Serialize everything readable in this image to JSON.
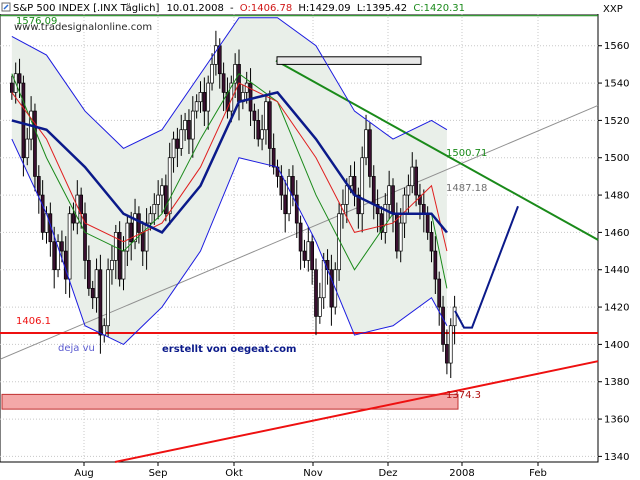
{
  "header": {
    "instrument": "S&P 500 INDEX [.INX  Täglich]",
    "date": "10.01.2008",
    "open": "O:1406.78",
    "high": "H:1429.09",
    "low": "L:1395.42",
    "close": "C:1420.31",
    "symbol": "XXP",
    "watermark": "www.tradesignalonline.com"
  },
  "colors": {
    "background": "#ffffff",
    "band_fill": "#e9efe9",
    "grid": "#c8c8c8",
    "candle_up": "#ffffff",
    "candle_down": "#3a1030",
    "bollinger": "#1c1ce0",
    "sma_fast": "#1a8a1a",
    "sma_mid": "#e02020",
    "sma_slow": "#0b1a8a",
    "trend_green": "#1a8a1a",
    "support_red": "#ee1010",
    "grey_line": "#909090",
    "arrow": "#0b1a8a"
  },
  "chart_data": {
    "type": "candlestick",
    "title": "S&P 500 INDEX [.INX  Täglich]",
    "x_tick_labels": [
      "Aug",
      "Sep",
      "Okt",
      "Nov",
      "Dez",
      "2008",
      "Feb"
    ],
    "y_ticks": [
      1340,
      1360,
      1380,
      1400,
      1420,
      1440,
      1460,
      1480,
      1500,
      1520,
      1540,
      1560
    ],
    "ylim": [
      1337,
      1577
    ],
    "grid": true,
    "annotations": [
      {
        "text": "1576.09",
        "color": "#1a8a1a"
      },
      {
        "text": "1500.71",
        "color": "#1a8a1a"
      },
      {
        "text": "1487.18",
        "color": "#707070"
      },
      {
        "text": "1406.1",
        "color": "#ee1010"
      },
      {
        "text": "1374.3",
        "color": "#b01010"
      },
      {
        "text": "deja vu",
        "color": "#5a5ad0"
      },
      {
        "text": "erstellt von oegeat.com",
        "color": "#0b1a8a"
      }
    ],
    "levels": {
      "resistance_top": 1576.09,
      "support": 1406.1,
      "zone_low": 1366.4,
      "zone_high": 1374.3,
      "rect_low": 1550,
      "rect_high": 1553
    },
    "closes": [
      1535,
      1545,
      1540,
      1500,
      1510,
      1525,
      1490,
      1480,
      1460,
      1470,
      1455,
      1440,
      1455,
      1450,
      1435,
      1470,
      1465,
      1480,
      1470,
      1445,
      1430,
      1425,
      1440,
      1405,
      1410,
      1440,
      1445,
      1460,
      1435,
      1450,
      1465,
      1455,
      1470,
      1460,
      1450,
      1465,
      1470,
      1475,
      1480,
      1485,
      1470,
      1500,
      1510,
      1505,
      1515,
      1520,
      1510,
      1525,
      1530,
      1535,
      1525,
      1540,
      1550,
      1560,
      1545,
      1535,
      1525,
      1540,
      1550,
      1530,
      1535,
      1540,
      1525,
      1520,
      1510,
      1515,
      1530,
      1505,
      1495,
      1490,
      1480,
      1470,
      1490,
      1480,
      1465,
      1450,
      1445,
      1455,
      1440,
      1415,
      1425,
      1445,
      1440,
      1420,
      1440,
      1470,
      1475,
      1485,
      1490,
      1480,
      1470,
      1500,
      1515,
      1490,
      1475,
      1470,
      1460,
      1475,
      1485,
      1470,
      1450,
      1465,
      1480,
      1485,
      1495,
      1480,
      1475,
      1470,
      1460,
      1450,
      1435,
      1420,
      1400,
      1390,
      1410,
      1420
    ],
    "sma_fast_x": [
      1,
      10,
      20,
      30,
      40,
      50,
      60,
      70,
      80,
      90,
      100,
      110,
      114
    ],
    "sma_fast": [
      1545,
      1500,
      1460,
      1450,
      1470,
      1510,
      1545,
      1530,
      1480,
      1440,
      1470,
      1470,
      1430
    ],
    "sma_mid_x": [
      1,
      10,
      20,
      30,
      40,
      50,
      60,
      70,
      80,
      90,
      100,
      110,
      114
    ],
    "sma_mid": [
      1535,
      1510,
      1465,
      1455,
      1465,
      1495,
      1540,
      1530,
      1500,
      1460,
      1465,
      1485,
      1450
    ],
    "sma_slow_x": [
      1,
      10,
      20,
      30,
      40,
      50,
      60,
      70,
      80,
      90,
      100,
      110,
      114
    ],
    "sma_slow": [
      1520,
      1515,
      1495,
      1470,
      1460,
      1485,
      1530,
      1535,
      1510,
      1480,
      1470,
      1470,
      1460
    ],
    "boll_x": [
      1,
      10,
      20,
      30,
      40,
      50,
      60,
      70,
      80,
      90,
      100,
      110,
      114
    ],
    "boll_upper": [
      1565,
      1555,
      1525,
      1505,
      1515,
      1545,
      1575,
      1575,
      1560,
      1525,
      1510,
      1520,
      1515
    ],
    "boll_lower": [
      1510,
      1470,
      1410,
      1400,
      1420,
      1450,
      1500,
      1495,
      1455,
      1405,
      1410,
      1425,
      1410
    ]
  }
}
